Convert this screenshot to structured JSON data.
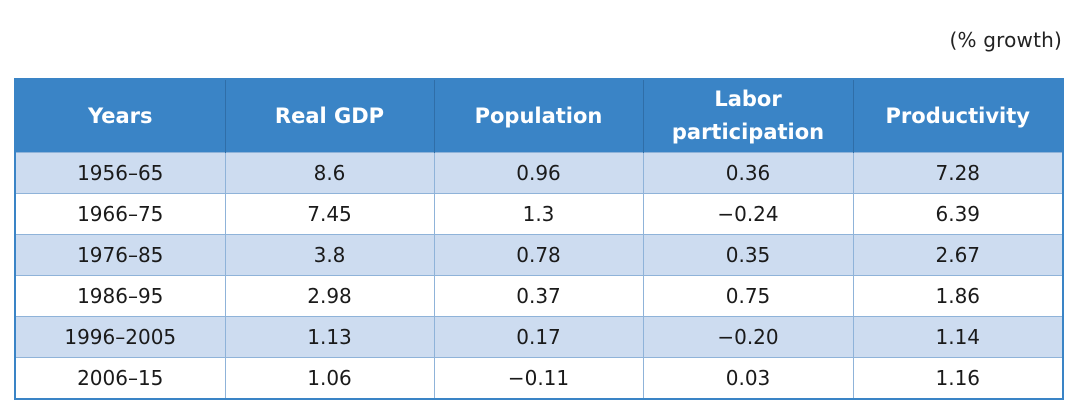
{
  "unit_note": "(% growth)",
  "table": {
    "headers": [
      "Years",
      "Real GDP",
      "Population",
      "Labor participation",
      "Productivity"
    ],
    "rows": [
      [
        "1956–65",
        "8.6",
        "0.96",
        "0.36",
        "7.28"
      ],
      [
        "1966–75",
        "7.45",
        "1.3",
        "−0.24",
        "6.39"
      ],
      [
        "1976–85",
        "3.8",
        "0.78",
        "0.35",
        "2.67"
      ],
      [
        "1986–95",
        "2.98",
        "0.37",
        "0.75",
        "1.86"
      ],
      [
        "1996–2005",
        "1.13",
        "0.17",
        "−0.20",
        "1.14"
      ],
      [
        "2006–15",
        "1.06",
        "−0.11",
        "0.03",
        "1.16"
      ]
    ]
  }
}
